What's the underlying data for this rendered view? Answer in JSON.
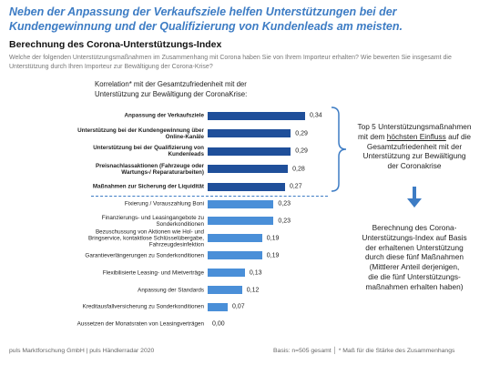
{
  "chart_data": {
    "type": "bar",
    "title": [
      "Neben der Anpassung der Verkaufsziele helfen Unterstützungen bei der",
      "Kundengewinnung und der Qualifizierung von Kundenleads am meisten."
    ],
    "heading": "Berechnung des Corona-Unterstützungs-Index",
    "subtitle": [
      "Welche der folgenden Unterstützungsmaßnahmen im Zusammenhang mit Corona haben Sie von Ihrem Importeur erhalten? Wie bewerten Sie insgesamt die",
      "Unterstützung durch Ihren Importeur zur Bewältigung der Corona-Krise?"
    ],
    "chart_title": [
      "Korrelation* mit der Gesamtzufriedenheit mit der",
      "Unterstützung zur Bewältigung der CoronaKrise:"
    ],
    "categories": [
      "Anpassung der Verkaufsziele",
      "Unterstützung bei der Kundengewinnung über Online-Kanäle",
      "Unterstützung bei der Qualifizierung von Kundenleads",
      "Preisnachlassaktionen (Fahrzeuge oder Wartungs-/ Reparaturarbeiten)",
      "Maßnahmen zur Sicherung der Liquidität",
      "Fixierung / Vorauszahlung Boni",
      "Finanzierungs- und Leasingangebote zu Sonderkonditionen",
      "Bezuschussung von Aktionen wie Hol- und Bringservice, kontaktlose Schlüsselübergabe, Fahrzeugdesinfektion",
      "Garantieverlängerungen zu Sonderkonditionen",
      "Flexibilisierte Leasing- und Mietverträge",
      "Anpassung der Standards",
      "Kreditausfallversicherung zu Sonderkonditionen",
      "Aussetzen der Monatsraten von Leasingverträgen"
    ],
    "values": [
      0.34,
      0.29,
      0.29,
      0.28,
      0.27,
      0.23,
      0.23,
      0.19,
      0.19,
      0.13,
      0.12,
      0.07,
      0.0
    ],
    "value_labels": [
      "0,34",
      "0,29",
      "0,29",
      "0,28",
      "0,27",
      "0,23",
      "0,23",
      "0,19",
      "0,19",
      "0,13",
      "0,12",
      "0,07",
      "0,00"
    ],
    "colors": [
      "#1f4f9a",
      "#1f4f9a",
      "#1f4f9a",
      "#1f4f9a",
      "#1f4f9a",
      "#4a8fd8",
      "#4a8fd8",
      "#4a8fd8",
      "#4a8fd8",
      "#4a8fd8",
      "#4a8fd8",
      "#4a8fd8",
      "#4a8fd8"
    ],
    "annotation_top": [
      "Top 5 Unterstützungsmaßnahmen",
      "mit dem ",
      "höchsten Einfluss",
      " auf die",
      "Gesamtzufriedenheit mit der",
      "Unterstützung zur Bewältigung",
      "der Coronakrise"
    ],
    "annotation_bottom": [
      "Berechnung des Corona-",
      "Unterstützungs-Index auf Basis",
      "der erhaltenen Unterstützung",
      "durch diese fünf Maßnahmen",
      "(Mittlerer Anteil derjenigen,",
      "die die fünf Unterstützungs-",
      "maßnahmen erhalten haben)"
    ],
    "source": "puls Marktforschung GmbH | puls Händlerradar 2020",
    "footnote": "Basis: n=505 gesamt │ * Maß für die Stärke des Zusammenhangs"
  }
}
